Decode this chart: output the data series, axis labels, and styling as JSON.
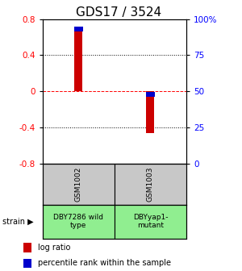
{
  "title": "GDS17 / 3524",
  "samples": [
    "GSM1002",
    "GSM1003"
  ],
  "log_ratios": [
    0.72,
    -0.46
  ],
  "percentile_ranks_pct": [
    93,
    48
  ],
  "bar_color": "#cc0000",
  "percentile_color": "#0000cc",
  "ylim": [
    -0.8,
    0.8
  ],
  "yticks_left": [
    -0.8,
    -0.4,
    0,
    0.4,
    0.8
  ],
  "yticks_right_pct": [
    0,
    25,
    50,
    75,
    100
  ],
  "yticks_right_labels": [
    "0",
    "25",
    "50",
    "75",
    "100%"
  ],
  "grid_ticks_solid": [
    -0.4,
    0.4
  ],
  "grid_tick_dashed": 0,
  "strain_labels": [
    "DBY7286 wild\ntype",
    "DBYyap1-\nmutant"
  ],
  "strain_bg_color": "#90ee90",
  "sample_bg_color": "#c8c8c8",
  "bar_width": 0.055,
  "x_positions": [
    0.25,
    0.75
  ],
  "xlim": [
    0,
    1
  ],
  "legend_items": [
    {
      "label": "log ratio",
      "color": "#cc0000"
    },
    {
      "label": "percentile rank within the sample",
      "color": "#0000cc"
    }
  ]
}
